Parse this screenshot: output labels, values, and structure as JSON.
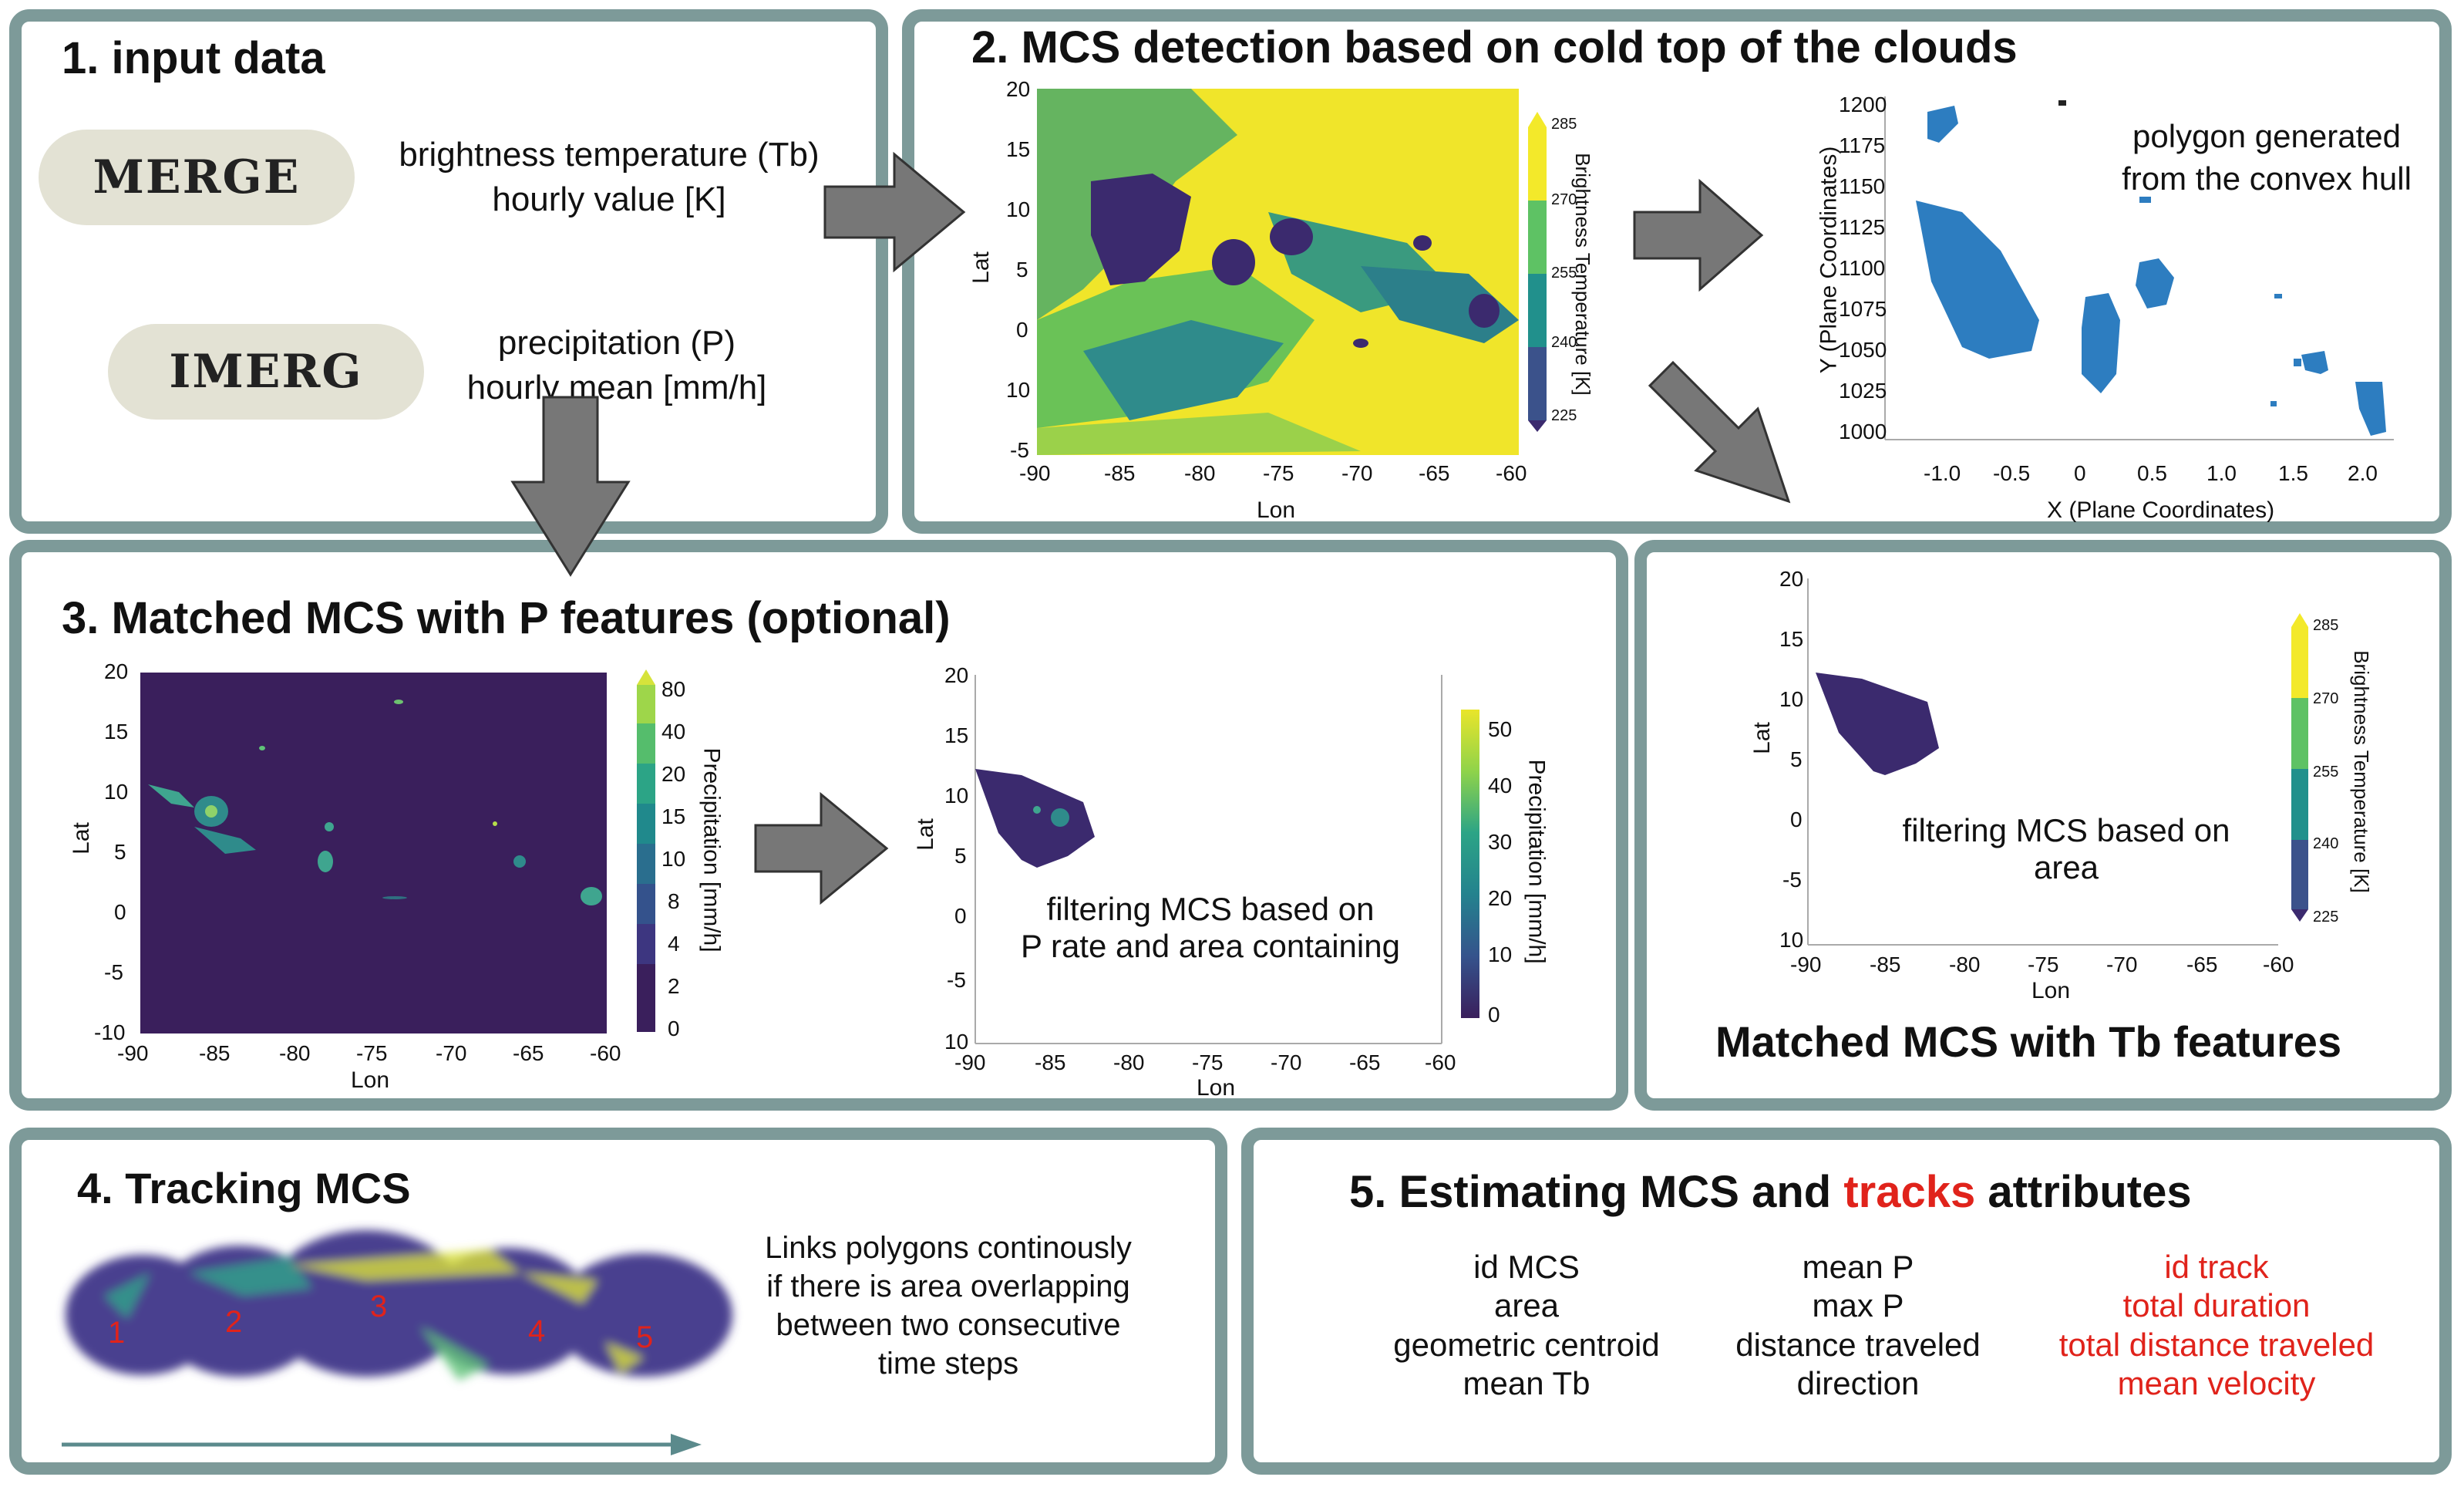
{
  "panel1": {
    "title": "1. input data",
    "merge_label": "MERGE",
    "merge_desc_1": "brightness temperature (Tb)",
    "merge_desc_2": "hourly value [K]",
    "imerg_label": "IMERG",
    "imerg_desc_1": "precipitation (P)",
    "imerg_desc_2": "hourly mean [mm/h]"
  },
  "panel2": {
    "title": "2. MCS detection based on cold top of the clouds",
    "map": {
      "lat_ticks": [
        "20",
        "15",
        "10",
        "5",
        "0",
        "10",
        "-5"
      ],
      "lon_ticks": [
        "-90",
        "-85",
        "-80",
        "-75",
        "-70",
        "-65",
        "-60"
      ],
      "xlabel": "Lon",
      "ylabel": "Lat",
      "cbar_ticks": [
        "285",
        "270",
        "255",
        "240",
        "225"
      ],
      "cbar_label": "Brightness Temperature [K]"
    },
    "poly": {
      "annotation_1": "polygon generated",
      "annotation_2": "from the convex hull",
      "y_ticks": [
        "1200",
        "1175",
        "1150",
        "1125",
        "1100",
        "1075",
        "1050",
        "1025",
        "1000"
      ],
      "x_ticks": [
        "-1.0",
        "-0.5",
        "0",
        "0.5",
        "1.0",
        "1.5",
        "2.0"
      ],
      "xlabel": "X (Plane Coordinates)",
      "ylabel": "Y (Plane Coordinates)"
    },
    "filtered": {
      "lat_ticks": [
        "20",
        "15",
        "10",
        "5",
        "0",
        "-5",
        "10"
      ],
      "lon_ticks": [
        "-90",
        "-85",
        "-80",
        "-75",
        "-70",
        "-65",
        "-60"
      ],
      "xlabel": "Lon",
      "ylabel": "Lat",
      "cbar_ticks": [
        "285",
        "270",
        "255",
        "240",
        "225"
      ],
      "cbar_label": "Brightness Temperature [K]",
      "annotation_1": "filtering MCS based on",
      "annotation_2": "area"
    },
    "matched_title": "Matched MCS with Tb features"
  },
  "panel3": {
    "title": "3. Matched MCS with P features (optional)",
    "map": {
      "lat_ticks": [
        "20",
        "15",
        "10",
        "5",
        "0",
        "-5",
        "-10"
      ],
      "lon_ticks": [
        "-90",
        "-85",
        "-80",
        "-75",
        "-70",
        "-65",
        "-60"
      ],
      "xlabel": "Lon",
      "ylabel": "Lat",
      "cbar_ticks": [
        "80",
        "40",
        "20",
        "15",
        "10",
        "8",
        "4",
        "2",
        "0"
      ],
      "cbar_label": "Precipitation [mm/h]"
    },
    "filtered": {
      "lat_ticks": [
        "20",
        "15",
        "10",
        "5",
        "0",
        "-5",
        "10"
      ],
      "lon_ticks": [
        "-90",
        "-85",
        "-80",
        "-75",
        "-70",
        "-65",
        "-60"
      ],
      "xlabel": "Lon",
      "ylabel": "Lat",
      "cbar_ticks": [
        "50",
        "40",
        "30",
        "20",
        "10",
        "0"
      ],
      "cbar_label": "Precipitation [mm/h]",
      "annotation_1": "filtering MCS based on",
      "annotation_2": "P rate and area containing"
    }
  },
  "panel4": {
    "title": "4. Tracking MCS",
    "labels": [
      "1",
      "2",
      "3",
      "4",
      "5"
    ],
    "desc_1": "Links polygons continously",
    "desc_2": "if there is area overlapping",
    "desc_3": "between two consecutive",
    "desc_4": "time steps"
  },
  "panel5": {
    "title_a": "5. Estimating MCS and ",
    "title_b": "tracks",
    "title_c": " attributes",
    "col1": [
      "id MCS",
      "area",
      "geometric centroid",
      "mean Tb"
    ],
    "col2": [
      "mean P",
      "max P",
      "distance traveled",
      "direction"
    ],
    "col3": [
      "id track",
      "total duration",
      "total distance traveled",
      "mean velocity"
    ]
  },
  "colors": {
    "border": "#7d9a99",
    "arrow": "#777777",
    "highlight": "#e0231b",
    "cold": "#3b2a6e",
    "warm": "#f3e92a"
  }
}
